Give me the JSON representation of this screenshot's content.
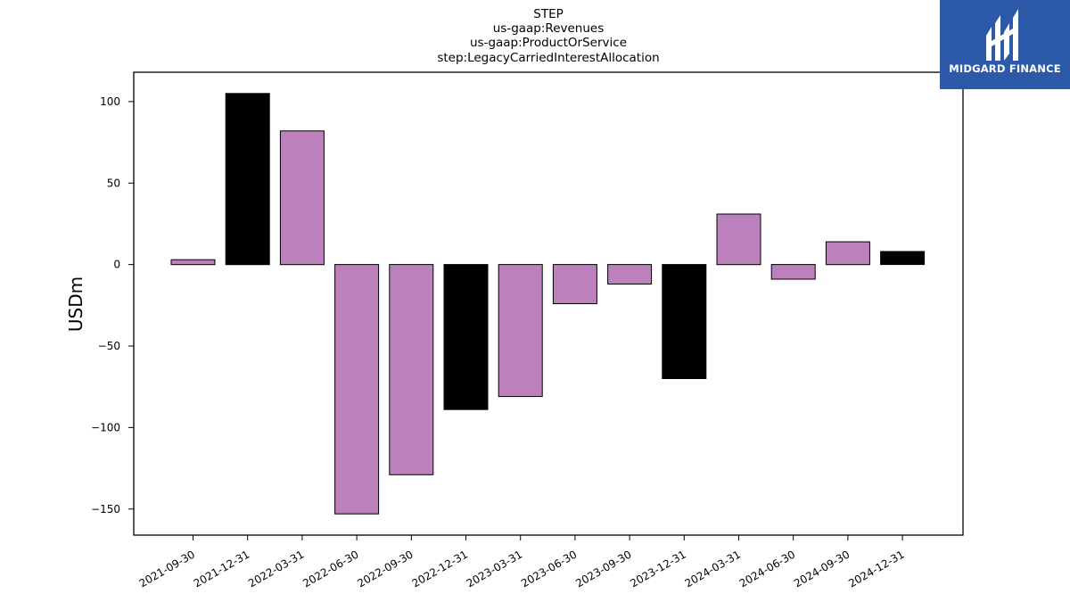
{
  "colors": {
    "bar_normal": "#bc80bd",
    "bar_q4": "#000000",
    "edge": "#000000",
    "logo_bg": "#2d5aa8",
    "logo_fg": "#ffffff"
  },
  "logo": {
    "text": "MIDGARD FINANCE",
    "icon": "midgard-logo-icon"
  },
  "chart_data": {
    "type": "bar",
    "title_lines": [
      "STEP",
      "us-gaap:Revenues",
      "us-gaap:ProductOrService",
      "step:LegacyCarriedInterestAllocation"
    ],
    "xlabel": "",
    "ylabel": "USDm",
    "ylim": [
      -166,
      118
    ],
    "yticks": [
      100,
      50,
      0,
      -50,
      -100,
      -150
    ],
    "ytick_labels": [
      "100",
      "50",
      "0",
      "−50",
      "−100",
      "−150"
    ],
    "grid": false,
    "categories": [
      "2021-09-30",
      "2021-12-31",
      "2022-03-31",
      "2022-06-30",
      "2022-09-30",
      "2022-12-31",
      "2023-03-31",
      "2023-06-30",
      "2023-09-30",
      "2023-12-31",
      "2024-03-31",
      "2024-06-30",
      "2024-09-30",
      "2024-12-31"
    ],
    "values": [
      3,
      105,
      82,
      -153,
      -129,
      -89,
      -81,
      -24,
      -12,
      -70,
      31,
      -9,
      14,
      8
    ],
    "bar_color_keys": [
      "bar_normal",
      "bar_q4",
      "bar_normal",
      "bar_normal",
      "bar_normal",
      "bar_q4",
      "bar_normal",
      "bar_normal",
      "bar_normal",
      "bar_q4",
      "bar_normal",
      "bar_normal",
      "bar_normal",
      "bar_q4"
    ]
  }
}
